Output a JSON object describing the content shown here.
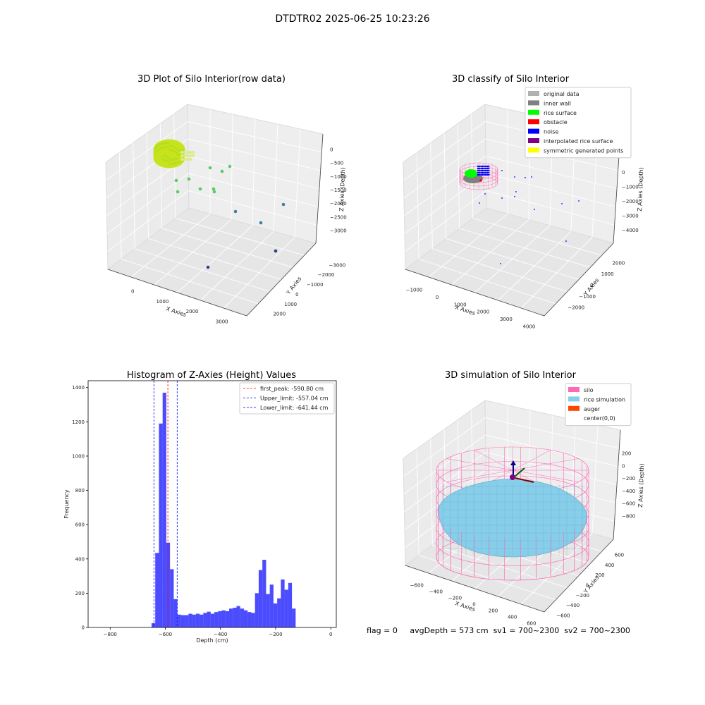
{
  "suptitle": "DTDTR02 2025-06-25 10:23:26",
  "status": {
    "flag": "flag = 0",
    "avg_depth": "avgDepth = 573 cm",
    "sv1": "sv1 = 700~2300",
    "sv2": "sv2 = 700~2300"
  },
  "chart_data": [
    {
      "type": "scatter3d",
      "title": "3D Plot of Silo Interior(row data)",
      "xlabel": "X Axies",
      "ylabel": "Y Axies",
      "zlabel": "Z Axies (Depth)",
      "x_ticks": [
        "0",
        "1000",
        "2000",
        "3000"
      ],
      "y_ticks": [
        "−3000",
        "−2000",
        "−1000",
        "0",
        "1000",
        "2000"
      ],
      "z_ticks": [
        "−3000",
        "−2500",
        "−2000",
        "−1500",
        "−1000",
        "−500",
        "0"
      ],
      "colors": {
        "surface": "#b5df1f",
        "mid": "#5ec962",
        "low": "#3b82a0",
        "deep": "#2c3f88"
      }
    },
    {
      "type": "scatter3d",
      "title": "3D classify of Silo Interior",
      "xlabel": "X Axies",
      "ylabel": "Y Axies",
      "zlabel": "Z Axies (Depth)",
      "x_ticks": [
        "−1000",
        "0",
        "1000",
        "2000",
        "3000",
        "4000"
      ],
      "y_ticks": [
        "−2000",
        "−1000",
        "0",
        "1000",
        "2000"
      ],
      "z_ticks": [
        "−4000",
        "−3000",
        "−2000",
        "−1000",
        "0"
      ],
      "legend": [
        {
          "label": "original data",
          "color": "#b0b0b0"
        },
        {
          "label": "inner wall",
          "color": "#808080"
        },
        {
          "label": "rice surface",
          "color": "#00ff00"
        },
        {
          "label": "obstacle",
          "color": "#ff0000"
        },
        {
          "label": "noise",
          "color": "#0000ff"
        },
        {
          "label": "interpolated rice surface",
          "color": "#800080"
        },
        {
          "label": "symmetric generated points",
          "color": "#ffff00"
        }
      ]
    },
    {
      "type": "bar",
      "title": "Histogram of Z-Axies (Height) Values",
      "xlabel": "Depth (cm)",
      "ylabel": "Frequency",
      "xlim": [
        -880,
        20
      ],
      "ylim": [
        0,
        1440
      ],
      "x_ticks": [
        -800,
        -600,
        -400,
        -200,
        0
      ],
      "y_ticks": [
        0,
        200,
        400,
        600,
        800,
        1000,
        1200,
        1400
      ],
      "bar_color": "#0000ff",
      "bins": [
        {
          "x0": -650.0,
          "x1": -636.6,
          "value": 25
        },
        {
          "x0": -636.6,
          "x1": -623.2,
          "value": 435
        },
        {
          "x0": -623.2,
          "x1": -609.8,
          "value": 1190
        },
        {
          "x0": -609.8,
          "x1": -596.4,
          "value": 1370
        },
        {
          "x0": -596.4,
          "x1": -583.0,
          "value": 495
        },
        {
          "x0": -583.0,
          "x1": -569.6,
          "value": 340
        },
        {
          "x0": -569.6,
          "x1": -556.2,
          "value": 165
        },
        {
          "x0": -556.2,
          "x1": -542.8,
          "value": 75
        },
        {
          "x0": -542.8,
          "x1": -529.4,
          "value": 72
        },
        {
          "x0": -529.4,
          "x1": -516.0,
          "value": 72
        },
        {
          "x0": -516.0,
          "x1": -502.6,
          "value": 80
        },
        {
          "x0": -502.6,
          "x1": -489.2,
          "value": 75
        },
        {
          "x0": -489.2,
          "x1": -475.8,
          "value": 80
        },
        {
          "x0": -475.8,
          "x1": -462.4,
          "value": 75
        },
        {
          "x0": -462.4,
          "x1": -449.0,
          "value": 85
        },
        {
          "x0": -449.0,
          "x1": -435.6,
          "value": 92
        },
        {
          "x0": -435.6,
          "x1": -422.2,
          "value": 80
        },
        {
          "x0": -422.2,
          "x1": -408.8,
          "value": 90
        },
        {
          "x0": -408.8,
          "x1": -395.4,
          "value": 95
        },
        {
          "x0": -395.4,
          "x1": -382.0,
          "value": 100
        },
        {
          "x0": -382.0,
          "x1": -368.6,
          "value": 95
        },
        {
          "x0": -368.6,
          "x1": -355.2,
          "value": 110
        },
        {
          "x0": -355.2,
          "x1": -341.8,
          "value": 115
        },
        {
          "x0": -341.8,
          "x1": -328.4,
          "value": 125
        },
        {
          "x0": -328.4,
          "x1": -315.0,
          "value": 110
        },
        {
          "x0": -315.0,
          "x1": -301.6,
          "value": 100
        },
        {
          "x0": -301.6,
          "x1": -288.2,
          "value": 90
        },
        {
          "x0": -288.2,
          "x1": -274.8,
          "value": 85
        },
        {
          "x0": -274.8,
          "x1": -261.4,
          "value": 200
        },
        {
          "x0": -261.4,
          "x1": -248.0,
          "value": 335
        },
        {
          "x0": -248.0,
          "x1": -234.6,
          "value": 395
        },
        {
          "x0": -234.6,
          "x1": -221.2,
          "value": 195
        },
        {
          "x0": -221.2,
          "x1": -207.8,
          "value": 250
        },
        {
          "x0": -207.8,
          "x1": -194.4,
          "value": 140
        },
        {
          "x0": -194.4,
          "x1": -181.0,
          "value": 170
        },
        {
          "x0": -181.0,
          "x1": -167.6,
          "value": 280
        },
        {
          "x0": -167.6,
          "x1": -154.2,
          "value": 220
        },
        {
          "x0": -154.2,
          "x1": -140.8,
          "value": 260
        },
        {
          "x0": -140.8,
          "x1": -127.4,
          "value": 110
        }
      ],
      "vlines": [
        {
          "label": "first_peak: -590.80 cm",
          "x": -590.8,
          "color": "#ff0000"
        },
        {
          "label": "Upper_limit: -557.04 cm",
          "x": -557.04,
          "color": "#0000ff"
        },
        {
          "label": "Lower_limit: -641.44 cm",
          "x": -641.44,
          "color": "#0000ff"
        }
      ]
    },
    {
      "type": "surface3d",
      "title": "3D simulation of Silo Interior",
      "xlabel": "X Axies",
      "ylabel": "Y Axies",
      "zlabel": "Z Axies (Depth)",
      "x_ticks": [
        "−600",
        "−400",
        "−200",
        "0",
        "200",
        "400",
        "600"
      ],
      "y_ticks": [
        "−600",
        "−400",
        "−200",
        "0",
        "200",
        "400",
        "600"
      ],
      "z_ticks": [
        "−800",
        "−600",
        "−400",
        "−200",
        "0",
        "200"
      ],
      "legend": [
        {
          "label": "silo",
          "color": "#ff69b4"
        },
        {
          "label": "rice simulation",
          "color": "#87ceeb"
        },
        {
          "label": "auger",
          "color": "#ff4500"
        },
        {
          "label": "center(0,0)",
          "color": ""
        }
      ]
    }
  ]
}
